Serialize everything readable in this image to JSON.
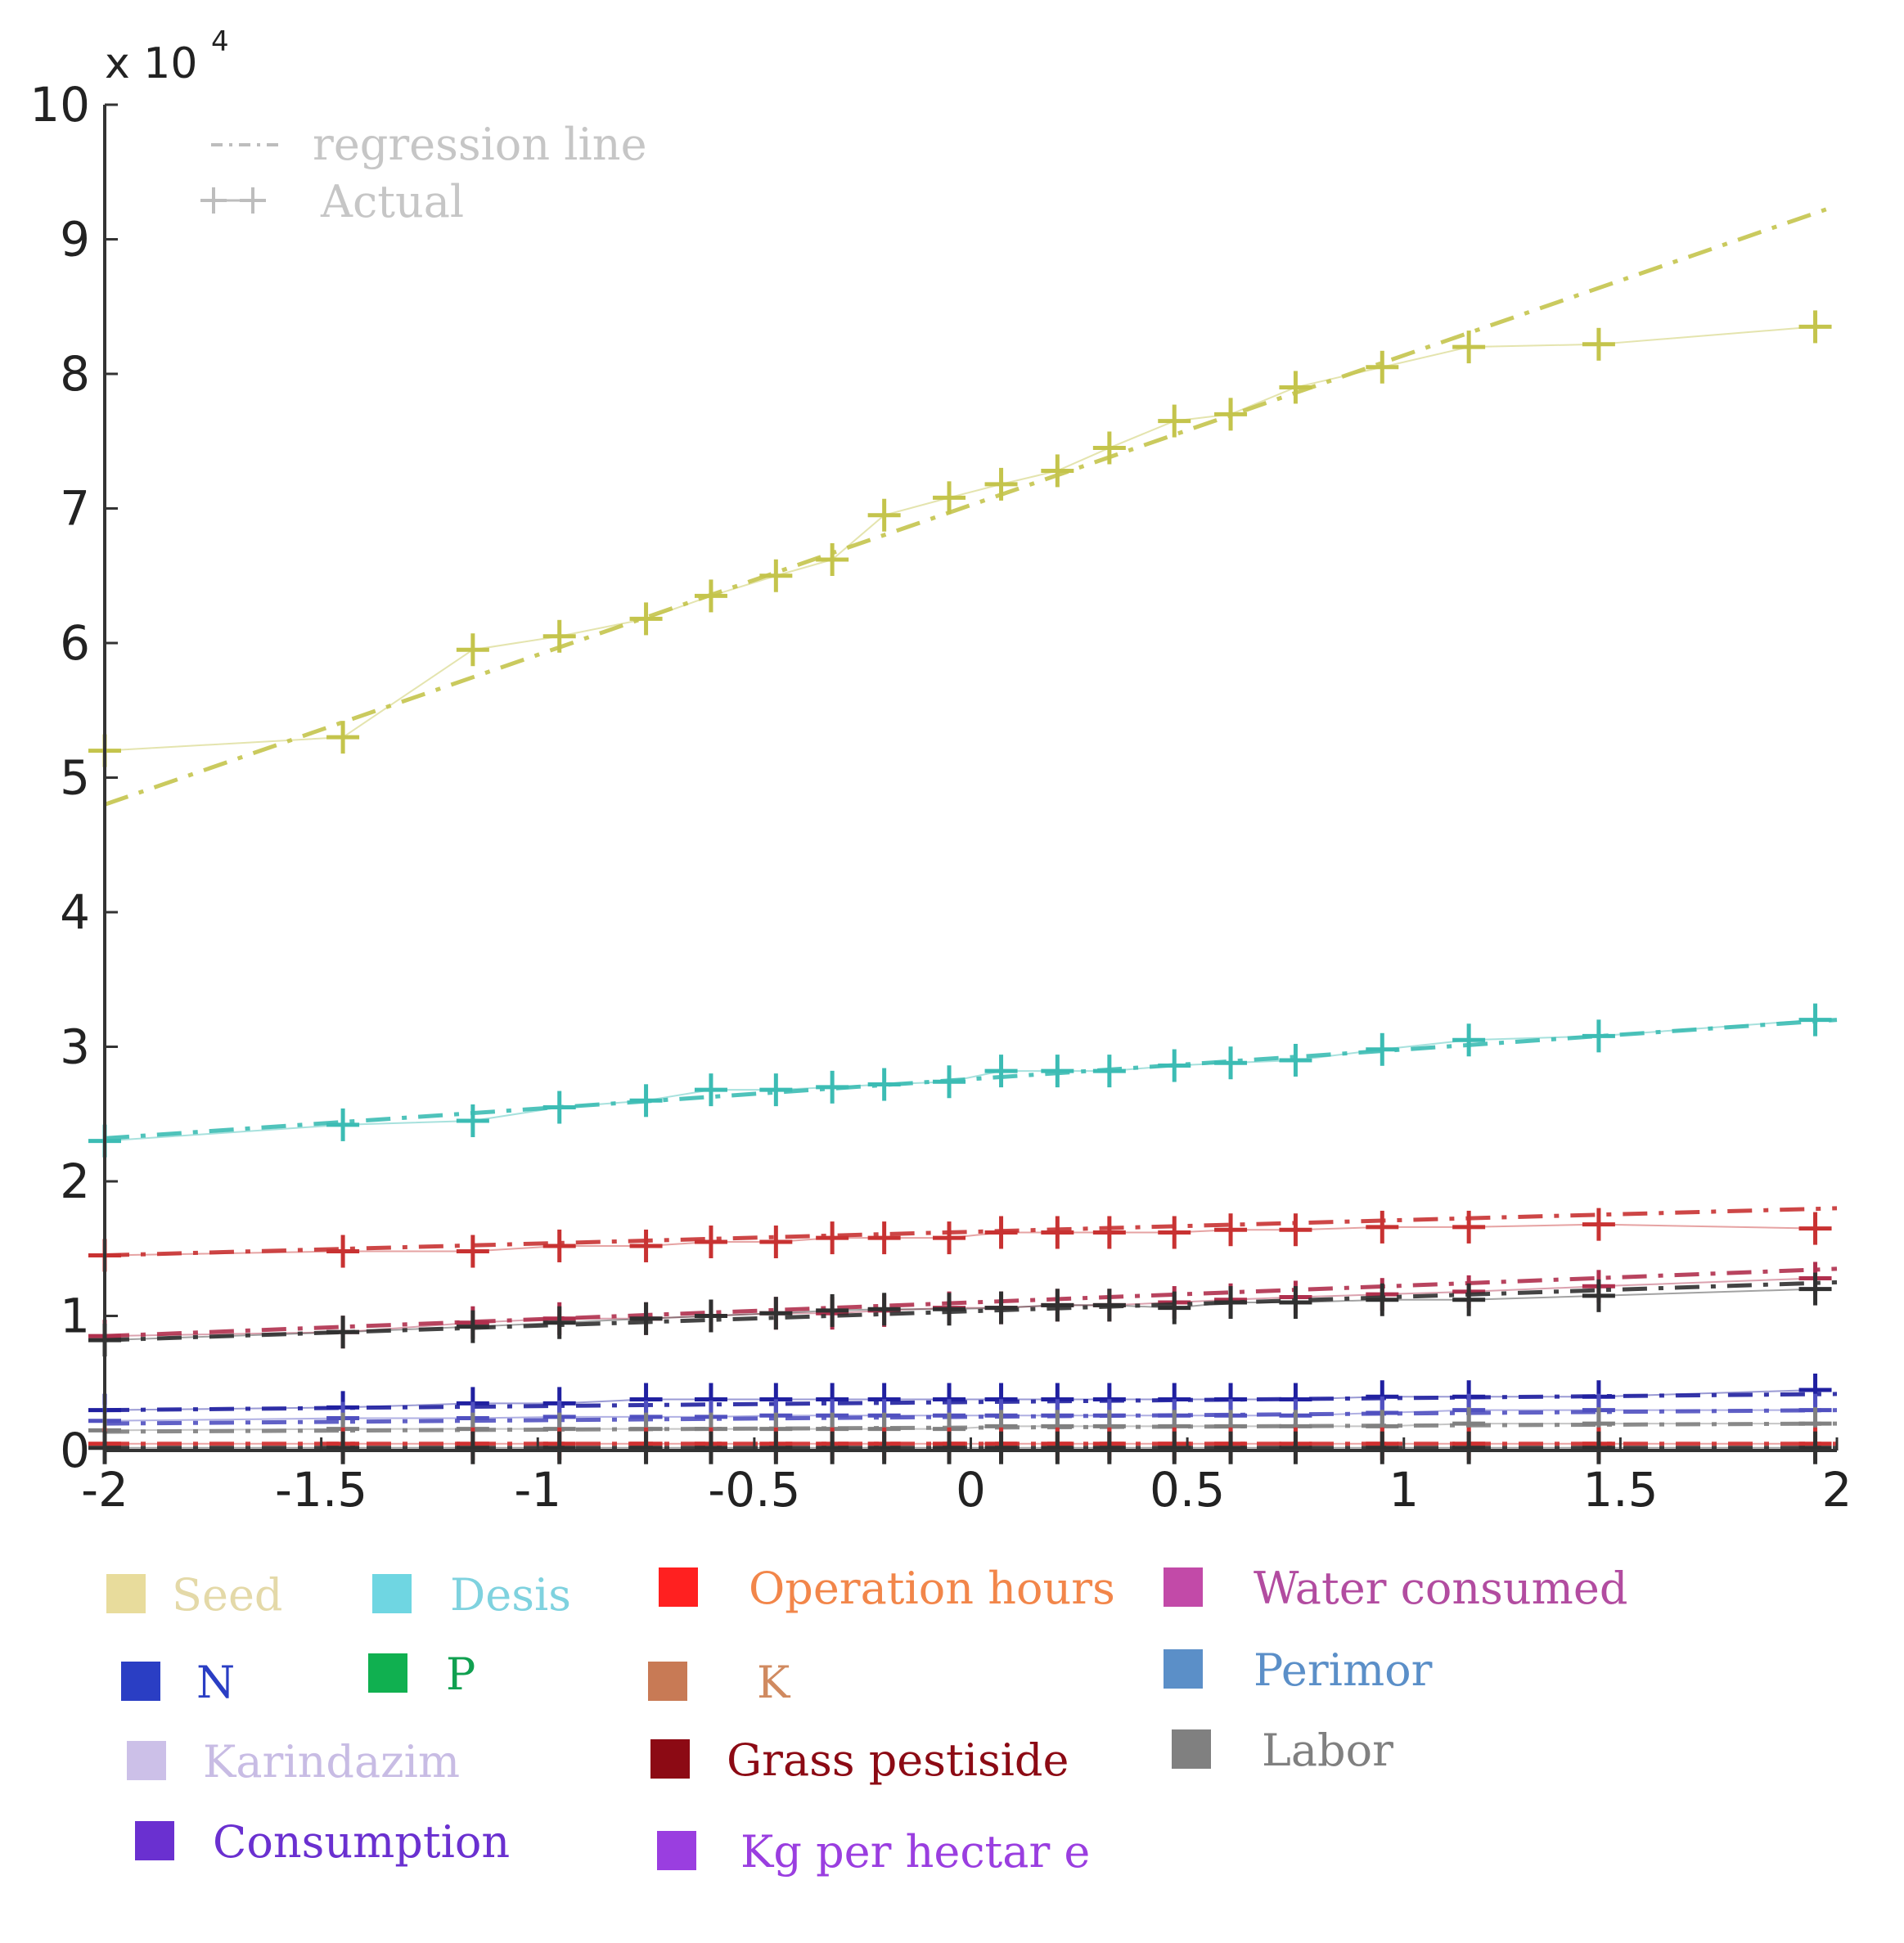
{
  "chart_data": {
    "type": "line",
    "title": "",
    "xlabel": "",
    "ylabel": "",
    "xlim": [
      -2,
      2
    ],
    "ylim": [
      0,
      10
    ],
    "x_ticks": [
      "-2",
      "-1.5",
      "-1",
      "-0.5",
      "0",
      "0.5",
      "1",
      "1.5",
      "2"
    ],
    "y_ticks": [
      "0",
      "1",
      "2",
      "3",
      "4",
      "5",
      "6",
      "7",
      "8",
      "9",
      "10"
    ],
    "y_multiplier": "x 10",
    "y_exponent": "4",
    "inner_legend": [
      {
        "label": "regression line",
        "style": "dash-dot"
      },
      {
        "label": "Actual",
        "style": "plus-markers"
      }
    ],
    "legend": [
      {
        "label": "Seed",
        "color": "#e8dc9c",
        "text_color": "#e4d9a8"
      },
      {
        "label": "Desis",
        "color": "#6fd6e2",
        "text_color": "#7fd2df"
      },
      {
        "label": "Operation hours",
        "color": "#ff2020",
        "text_color": "#f2864a"
      },
      {
        "label": "Water consumed",
        "color": "#c24aa8",
        "text_color": "#b24ca0"
      },
      {
        "label": "N",
        "color": "#2a3ec4",
        "text_color": "#2a3ec4"
      },
      {
        "label": "P",
        "color": "#10b050",
        "text_color": "#10a050"
      },
      {
        "label": "K",
        "color": "#c87a55",
        "text_color": "#d08a60"
      },
      {
        "label": "Perimor",
        "color": "#5b8fc8",
        "text_color": "#5b8fc8"
      },
      {
        "label": "Karindazim",
        "color": "#ccc0e8",
        "text_color": "#c8bce4"
      },
      {
        "label": "Grass pestiside",
        "color": "#8c0a14",
        "text_color": "#8c0a14"
      },
      {
        "label": "Labor",
        "color": "#808080",
        "text_color": "#808080"
      },
      {
        "label": "Consumption",
        "color": "#6a30d0",
        "text_color": "#6a30d0"
      },
      {
        "label": "Kg per hectar e",
        "color": "#9a3ee0",
        "text_color": "#9a3ee0"
      }
    ],
    "x": [
      -2,
      -1.45,
      -1.15,
      -0.95,
      -0.75,
      -0.6,
      -0.45,
      -0.32,
      -0.2,
      -0.05,
      0.07,
      0.2,
      0.32,
      0.47,
      0.6,
      0.75,
      0.95,
      1.15,
      1.45,
      1.95
    ],
    "series": [
      {
        "name": "Seed",
        "color": "#c4c44c",
        "actual": [
          5.2,
          5.3,
          5.95,
          6.05,
          6.18,
          6.35,
          6.5,
          6.62,
          6.95,
          7.08,
          7.18,
          7.28,
          7.45,
          7.65,
          7.7,
          7.9,
          8.05,
          8.2,
          8.22,
          8.35
        ],
        "regression": [
          4.8,
          9.25
        ]
      },
      {
        "name": "Desis",
        "color": "#3cbcb4",
        "actual": [
          2.3,
          2.42,
          2.45,
          2.55,
          2.6,
          2.68,
          2.68,
          2.7,
          2.72,
          2.74,
          2.82,
          2.82,
          2.82,
          2.86,
          2.88,
          2.9,
          2.98,
          3.05,
          3.08,
          3.2
        ],
        "regression": [
          2.32,
          3.2
        ]
      },
      {
        "name": "Operation hours",
        "color": "#c83232",
        "actual": [
          1.45,
          1.48,
          1.48,
          1.52,
          1.52,
          1.55,
          1.55,
          1.58,
          1.58,
          1.58,
          1.62,
          1.62,
          1.62,
          1.62,
          1.64,
          1.64,
          1.66,
          1.66,
          1.68,
          1.65
        ],
        "regression": [
          1.45,
          1.8
        ]
      },
      {
        "name": "Water consumed",
        "color": "#b0304e",
        "actual": [
          0.85,
          0.88,
          0.95,
          0.98,
          0.98,
          1.0,
          1.02,
          1.02,
          1.04,
          1.06,
          1.06,
          1.08,
          1.08,
          1.1,
          1.12,
          1.14,
          1.16,
          1.18,
          1.22,
          1.28
        ],
        "regression": [
          0.85,
          1.35
        ]
      },
      {
        "name": "Labor",
        "color": "#303030",
        "actual": [
          0.82,
          0.88,
          0.92,
          0.95,
          0.98,
          1.0,
          1.02,
          1.04,
          1.05,
          1.05,
          1.06,
          1.08,
          1.08,
          1.06,
          1.1,
          1.1,
          1.12,
          1.12,
          1.15,
          1.2
        ],
        "regression": [
          0.82,
          1.25
        ]
      },
      {
        "name": "N",
        "color": "#2020a0",
        "actual": [
          0.3,
          0.32,
          0.35,
          0.35,
          0.38,
          0.38,
          0.38,
          0.38,
          0.38,
          0.38,
          0.38,
          0.38,
          0.38,
          0.38,
          0.38,
          0.38,
          0.4,
          0.4,
          0.4,
          0.45
        ],
        "regression": [
          0.3,
          0.42
        ]
      },
      {
        "name": "K",
        "color": "#5050c0",
        "actual": [
          0.22,
          0.24,
          0.24,
          0.25,
          0.25,
          0.25,
          0.26,
          0.26,
          0.26,
          0.26,
          0.26,
          0.26,
          0.26,
          0.26,
          0.26,
          0.26,
          0.28,
          0.3,
          0.3,
          0.3
        ],
        "regression": [
          0.2,
          0.3
        ]
      },
      {
        "name": "P",
        "color": "#808080",
        "actual": [
          0.15,
          0.16,
          0.16,
          0.16,
          0.16,
          0.16,
          0.16,
          0.16,
          0.16,
          0.16,
          0.18,
          0.18,
          0.18,
          0.18,
          0.18,
          0.18,
          0.18,
          0.2,
          0.2,
          0.2
        ],
        "regression": [
          0.14,
          0.2
        ]
      },
      {
        "name": "Perimor",
        "color": "#d03030",
        "actual": [
          0.05,
          0.05,
          0.05,
          0.05,
          0.05,
          0.05,
          0.05,
          0.05,
          0.05,
          0.05,
          0.05,
          0.05,
          0.05,
          0.05,
          0.05,
          0.05,
          0.05,
          0.05,
          0.05,
          0.05
        ],
        "regression": [
          0.05,
          0.05
        ]
      },
      {
        "name": "Consumption",
        "color": "#303030",
        "actual": [
          0.02,
          0.02,
          0.02,
          0.02,
          0.02,
          0.02,
          0.02,
          0.02,
          0.02,
          0.02,
          0.02,
          0.02,
          0.02,
          0.02,
          0.02,
          0.02,
          0.02,
          0.02,
          0.02,
          0.02
        ],
        "regression": [
          0.02,
          0.02
        ]
      }
    ]
  }
}
